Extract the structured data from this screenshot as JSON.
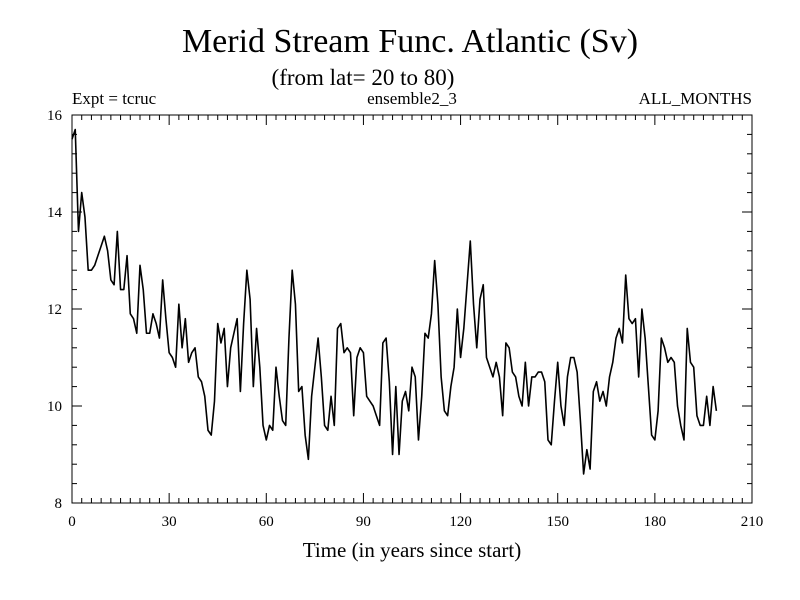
{
  "chart_data": {
    "type": "line",
    "title": "Merid Stream Func. Atlantic (Sv)",
    "subtitle": "(from lat= 20 to 80)",
    "header_left": "Expt = tcruc",
    "header_center": "ensemble2_3",
    "header_right": "ALL_MONTHS",
    "xlabel": "Time (in years since start)",
    "ylabel": "",
    "xlim": [
      0,
      210
    ],
    "ylim": [
      8,
      16
    ],
    "x_major_ticks": [
      0,
      30,
      60,
      90,
      120,
      150,
      180,
      210
    ],
    "x_tick_labels": [
      "0",
      "30",
      "60",
      "90",
      "120",
      "150",
      "180",
      "210"
    ],
    "x_minor_step": 3,
    "y_major_ticks": [
      8,
      10,
      12,
      14,
      16
    ],
    "y_tick_labels": [
      "8",
      "10",
      "12",
      "14",
      "16"
    ],
    "y_minor_step": 0.4,
    "grid": false,
    "series": [
      {
        "name": "ensemble2_3",
        "x_start": 0,
        "x_step": 1,
        "values": [
          15.5,
          15.7,
          13.6,
          14.4,
          13.9,
          12.8,
          12.8,
          12.9,
          13.1,
          13.3,
          13.5,
          13.2,
          12.6,
          12.5,
          13.6,
          12.4,
          12.4,
          13.1,
          11.9,
          11.8,
          11.5,
          12.9,
          12.4,
          11.5,
          11.5,
          11.9,
          11.7,
          11.4,
          12.6,
          11.8,
          11.1,
          11.0,
          10.8,
          12.1,
          11.2,
          11.8,
          10.9,
          11.1,
          11.2,
          10.6,
          10.5,
          10.2,
          9.5,
          9.4,
          10.1,
          11.7,
          11.3,
          11.6,
          10.4,
          11.2,
          11.5,
          11.8,
          10.3,
          11.7,
          12.8,
          12.2,
          10.4,
          11.6,
          10.8,
          9.6,
          9.3,
          9.6,
          9.5,
          10.8,
          10.2,
          9.7,
          9.6,
          11.4,
          12.8,
          12.1,
          10.3,
          10.4,
          9.4,
          8.9,
          10.2,
          10.8,
          11.4,
          10.6,
          9.6,
          9.5,
          10.2,
          9.6,
          11.6,
          11.7,
          11.1,
          11.2,
          11.1,
          9.8,
          11.0,
          11.2,
          11.1,
          10.2,
          10.1,
          10.0,
          9.8,
          9.6,
          11.3,
          11.4,
          10.5,
          9.0,
          10.4,
          9.0,
          10.1,
          10.3,
          9.9,
          10.8,
          10.6,
          9.3,
          10.2,
          11.5,
          11.4,
          11.9,
          13.0,
          12.1,
          10.6,
          9.9,
          9.8,
          10.4,
          10.8,
          12.0,
          11.0,
          11.6,
          12.5,
          13.4,
          12.1,
          11.2,
          12.2,
          12.5,
          11.0,
          10.8,
          10.6,
          10.9,
          10.6,
          9.8,
          11.3,
          11.2,
          10.7,
          10.6,
          10.2,
          10.0,
          10.9,
          10.0,
          10.6,
          10.6,
          10.7,
          10.7,
          10.5,
          9.3,
          9.2,
          10.1,
          10.9,
          10.0,
          9.6,
          10.6,
          11.0,
          11.0,
          10.7,
          9.7,
          8.6,
          9.1,
          8.7,
          10.3,
          10.5,
          10.1,
          10.3,
          10.0,
          10.6,
          10.9,
          11.4,
          11.6,
          11.3,
          12.7,
          11.8,
          11.7,
          11.8,
          10.6,
          12.0,
          11.4,
          10.4,
          9.4,
          9.3,
          9.9,
          11.4,
          11.2,
          10.9,
          11.0,
          10.9,
          10.0,
          9.6,
          9.3,
          11.6,
          10.9,
          10.8,
          9.8,
          9.6,
          9.6,
          10.2,
          9.6,
          10.4,
          9.9
        ]
      }
    ]
  }
}
